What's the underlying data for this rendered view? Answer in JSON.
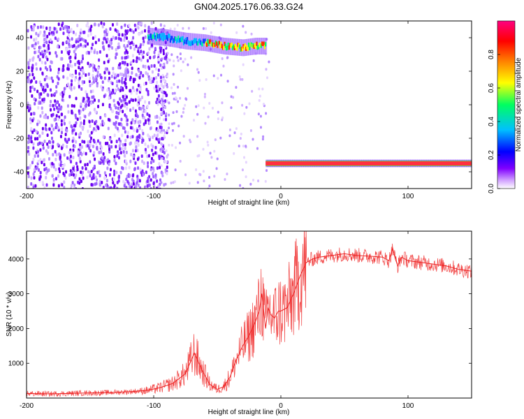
{
  "title": "GN04.2025.176.06.33.G24",
  "chart_data": [
    {
      "type": "heatmap",
      "title": "",
      "xlabel": "Height of straight line (km)",
      "ylabel": "Frequency (Hz)",
      "xlim": [
        -200,
        150
      ],
      "ylim": [
        -50,
        50
      ],
      "x_ticks": [
        -200,
        -100,
        0,
        100
      ],
      "y_ticks": [
        -40,
        -20,
        0,
        20,
        40
      ],
      "colorbar": {
        "label": "Normalized spectral amplitude",
        "range": [
          0,
          1
        ],
        "ticks": [
          0.0,
          0.2,
          0.4,
          0.6,
          0.8
        ],
        "colors": [
          "#ffffff",
          "#8000ff",
          "#0000ff",
          "#00c0ff",
          "#00ff60",
          "#ffff00",
          "#ff8000",
          "#ff0000",
          "#ff0080"
        ]
      },
      "features": [
        {
          "name": "noise-region",
          "x_range": [
            -200,
            -95
          ],
          "y_range": [
            -50,
            50
          ],
          "amplitude": 0.1
        },
        {
          "name": "upper-tone",
          "points": [
            [
              -105,
              41
            ],
            [
              -90,
              40
            ],
            [
              -75,
              38
            ],
            [
              -60,
              37
            ],
            [
              -45,
              35
            ],
            [
              -30,
              34
            ],
            [
              -20,
              35
            ],
            [
              -12,
              35
            ]
          ],
          "amplitude_peak": 0.9
        },
        {
          "name": "lower-tone",
          "points": [
            [
              -12,
              -35
            ],
            [
              0,
              -35
            ],
            [
              50,
              -35
            ],
            [
              100,
              -35
            ],
            [
              150,
              -35
            ]
          ],
          "amplitude_peak": 0.85
        }
      ],
      "grid": false
    },
    {
      "type": "line",
      "title": "",
      "xlabel": "Height of straight line (km)",
      "ylabel": "SNR (10 * v/v)",
      "xlim": [
        -200,
        150
      ],
      "ylim": [
        0,
        4800
      ],
      "x_ticks": [
        -200,
        -100,
        0,
        100
      ],
      "y_ticks": [
        1000,
        2000,
        3000,
        4000
      ],
      "color": "#ee2020",
      "series": [
        {
          "name": "",
          "x": [
            -200,
            -180,
            -160,
            -140,
            -120,
            -105,
            -95,
            -85,
            -75,
            -68,
            -62,
            -56,
            -50,
            -45,
            -40,
            -35,
            -30,
            -25,
            -20,
            -17,
            -15,
            -12,
            -10,
            -8,
            -5,
            -2,
            0,
            5,
            10,
            15,
            20,
            25,
            30,
            40,
            50,
            60,
            70,
            80,
            85,
            88,
            90,
            92,
            95,
            100,
            110,
            120,
            130,
            140,
            150
          ],
          "y": [
            130,
            120,
            140,
            150,
            180,
            220,
            300,
            420,
            700,
            1300,
            800,
            400,
            250,
            330,
            600,
            1100,
            1500,
            1800,
            2200,
            2500,
            3000,
            2000,
            2600,
            2400,
            2300,
            2500,
            2500,
            2600,
            3000,
            3500,
            3900,
            4000,
            4050,
            4100,
            4150,
            4100,
            4080,
            4050,
            3950,
            4300,
            4000,
            3800,
            4050,
            3950,
            3900,
            3850,
            3800,
            3700,
            3650
          ]
        }
      ],
      "grid": false
    }
  ]
}
